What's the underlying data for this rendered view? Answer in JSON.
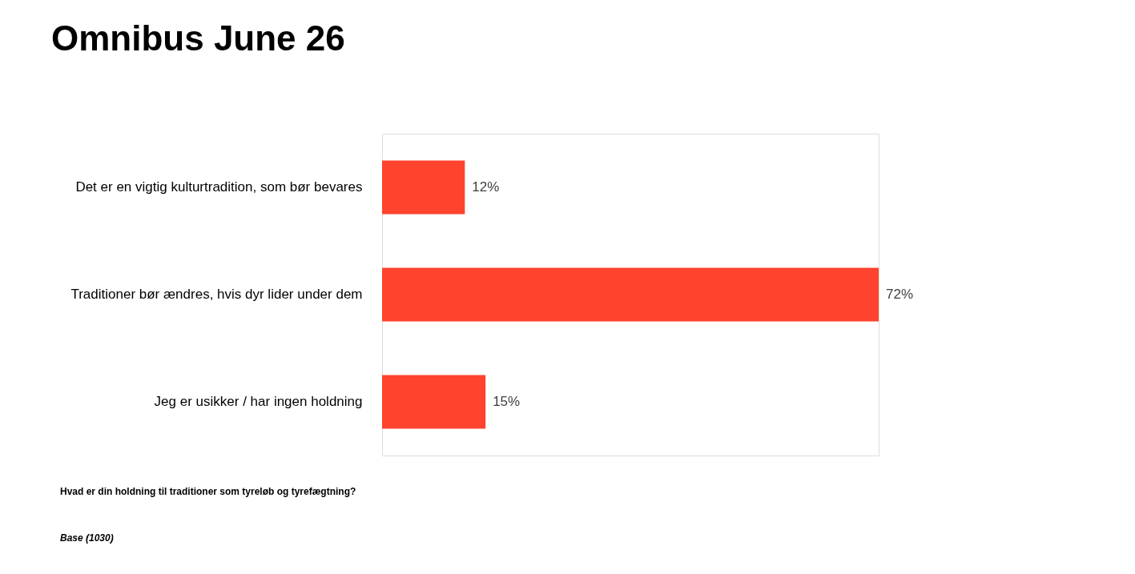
{
  "chart_data": {
    "type": "bar",
    "orientation": "horizontal",
    "title": "Omnibus June 26",
    "categories": [
      "Det er en vigtig kulturtradition, som bør bevares",
      "Traditioner bør ændres, hvis dyr lider under dem",
      "Jeg er usikker / har ingen holdning"
    ],
    "values": [
      12,
      72,
      15
    ],
    "color": "#ff432e",
    "value_labels": [
      "12%",
      "72%",
      "15%"
    ],
    "annotations": [
      "Hvad er din holdning til traditioner som tyreløb og tyrefægtning?",
      "Base (1030)"
    ]
  }
}
